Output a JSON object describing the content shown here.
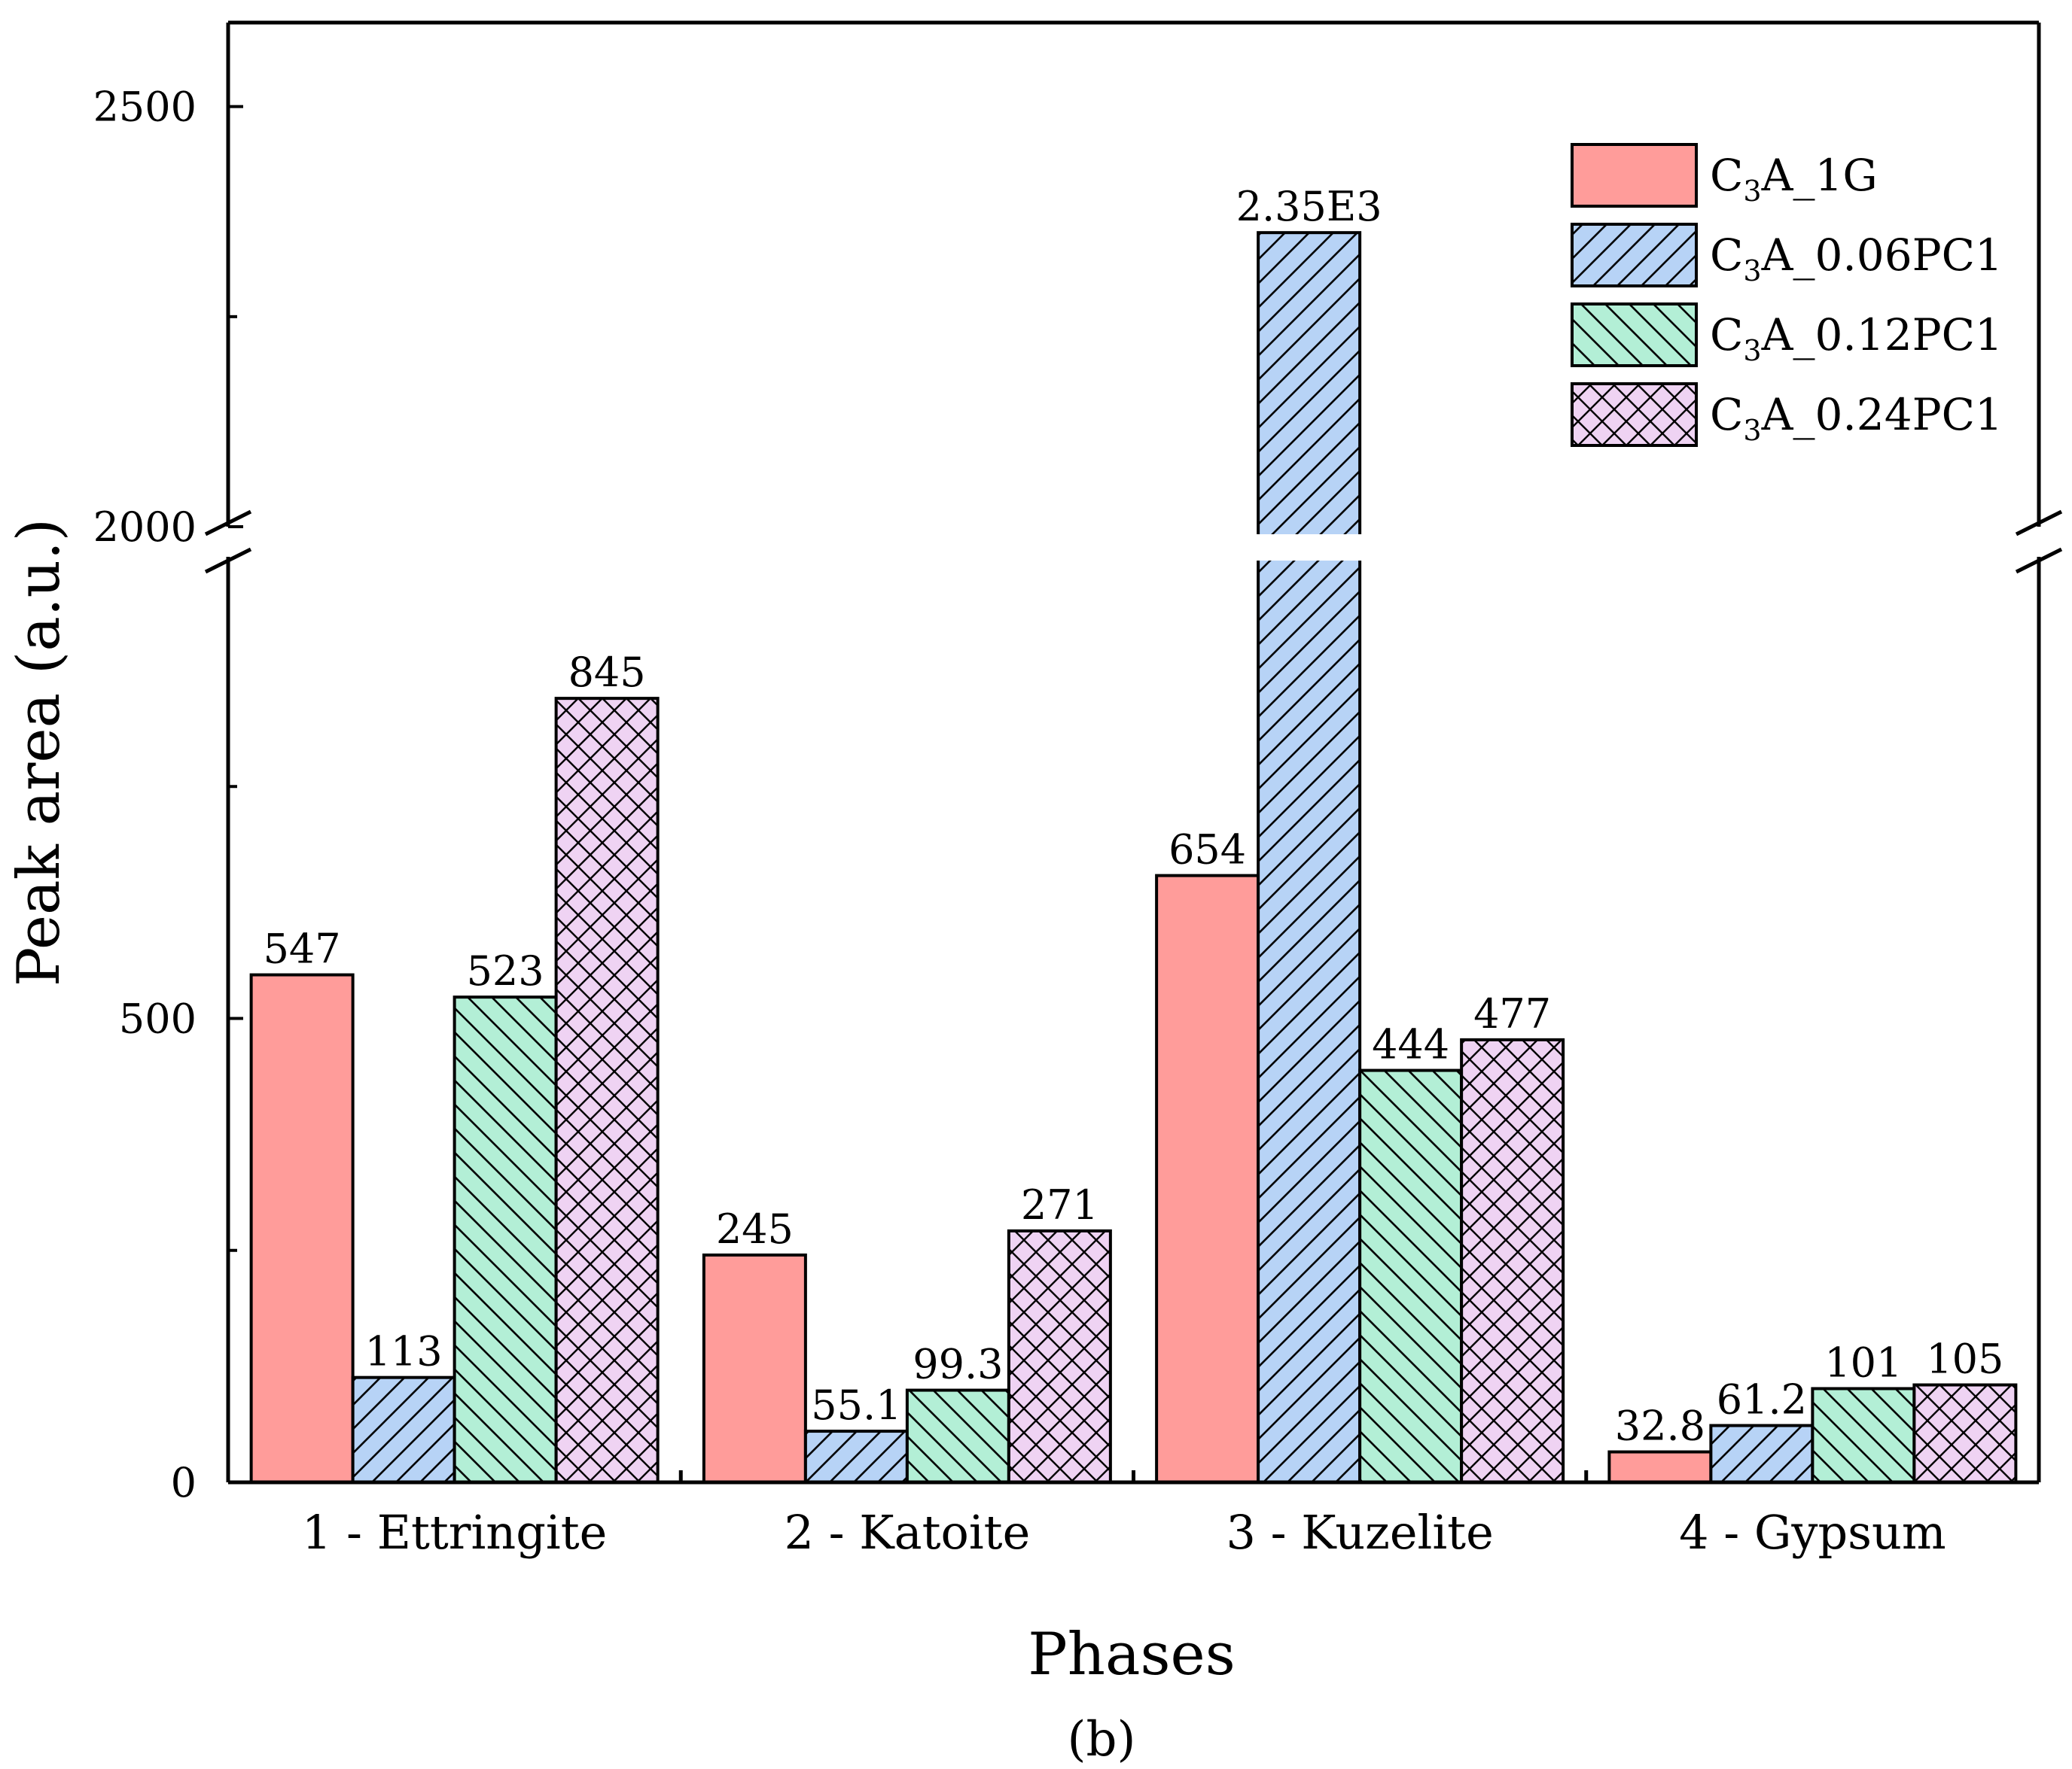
{
  "chart_data": {
    "type": "bar",
    "title": "",
    "xlabel": "Phases",
    "ylabel": "Peak area (a.u.)",
    "caption": "(b)",
    "categories": [
      "1 - Ettringite",
      "2 - Katoite",
      "3 - Kuzelite",
      "4 - Gypsum"
    ],
    "series": [
      {
        "name": "C3A_1G",
        "legend_main": "C",
        "legend_sub": "3",
        "legend_rest": "A_1G",
        "color": "#ff9c9a",
        "pattern": "solid",
        "values": [
          547,
          245,
          654,
          32.8
        ],
        "labels": [
          "547",
          "245",
          "654",
          "32.8"
        ]
      },
      {
        "name": "C3A_0.06PC1",
        "legend_main": "C",
        "legend_sub": "3",
        "legend_rest": "A_0.06PC1",
        "color": "#b7d3f6",
        "pattern": "diagonal-up",
        "values": [
          113,
          55.1,
          2350,
          61.2
        ],
        "labels": [
          "113",
          "55.1",
          "2.35E3",
          "61.2"
        ]
      },
      {
        "name": "C3A_0.12PC1",
        "legend_main": "C",
        "legend_sub": "3",
        "legend_rest": "A_0.12PC1",
        "color": "#b3efd6",
        "pattern": "diagonal-down",
        "values": [
          523,
          99.3,
          444,
          101
        ],
        "labels": [
          "523",
          "99.3",
          "444",
          "101"
        ]
      },
      {
        "name": "C3A_0.24PC1",
        "legend_main": "C",
        "legend_sub": "3",
        "legend_rest": "A_0.24PC1",
        "color": "#efd3f3",
        "pattern": "crosshatch",
        "values": [
          845,
          271,
          477,
          105
        ],
        "labels": [
          "845",
          "271",
          "477",
          "105"
        ]
      }
    ],
    "y_axis": {
      "lower_range": [
        0,
        1000
      ],
      "upper_range": [
        2000,
        2600
      ],
      "break_between": [
        1000,
        2000
      ],
      "tick_labels": [
        {
          "value": 0,
          "text": "0"
        },
        {
          "value": 500,
          "text": "500"
        },
        {
          "value": 2000,
          "text": "2000"
        },
        {
          "value": 2500,
          "text": "2500"
        }
      ],
      "minor_ticks": [
        250,
        750,
        2250
      ]
    },
    "grid": false,
    "legend_position": "top-right"
  }
}
